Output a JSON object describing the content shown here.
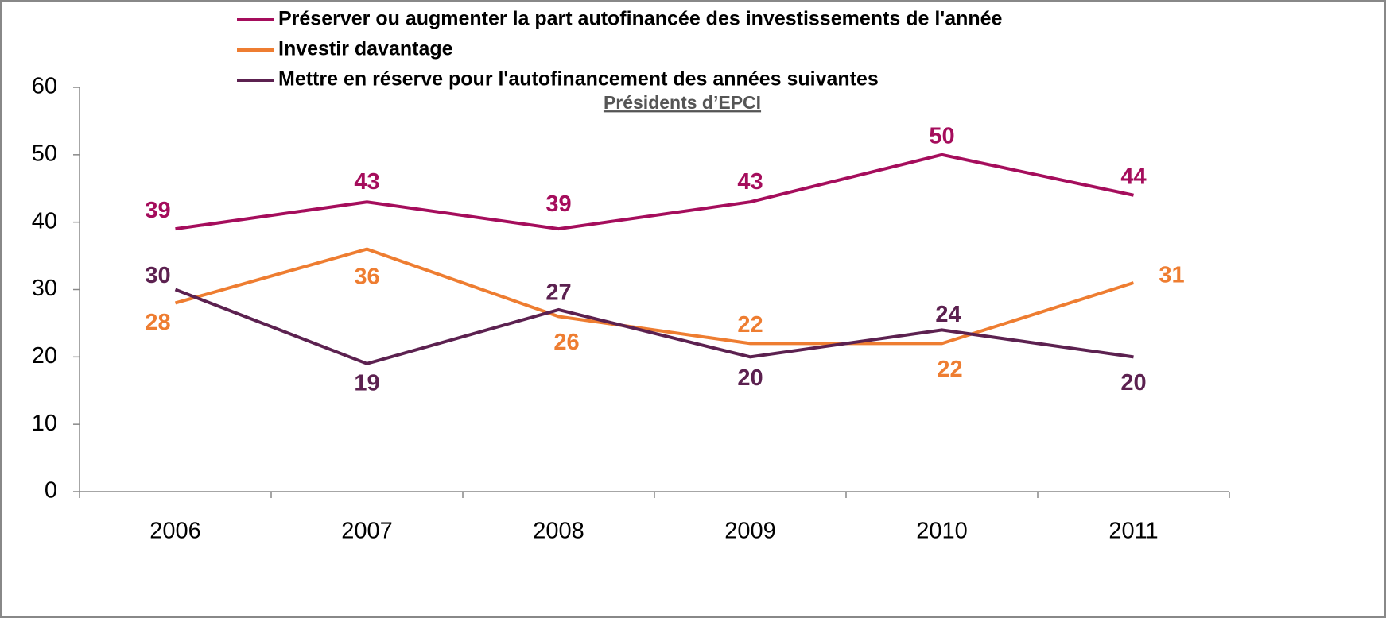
{
  "chart_data": {
    "type": "line",
    "subtitle": "Présidents d’EPCI",
    "categories": [
      "2006",
      "2007",
      "2008",
      "2009",
      "2010",
      "2011"
    ],
    "series": [
      {
        "name": "Préserver ou augmenter la part autofinancée des investissements de l'année",
        "color": "#a50d5c",
        "values": [
          39,
          43,
          39,
          43,
          50,
          44
        ]
      },
      {
        "name": "Investir davantage",
        "color": "#ee7d31",
        "values": [
          28,
          36,
          26,
          22,
          22,
          31
        ]
      },
      {
        "name": "Mettre en réserve pour l'autofinancement des années suivantes",
        "color": "#5c2150",
        "values": [
          30,
          19,
          27,
          20,
          24,
          20
        ]
      }
    ],
    "ylim": [
      0,
      60
    ],
    "yticks": [
      0,
      10,
      20,
      30,
      40,
      50,
      60
    ],
    "legend": "top"
  }
}
